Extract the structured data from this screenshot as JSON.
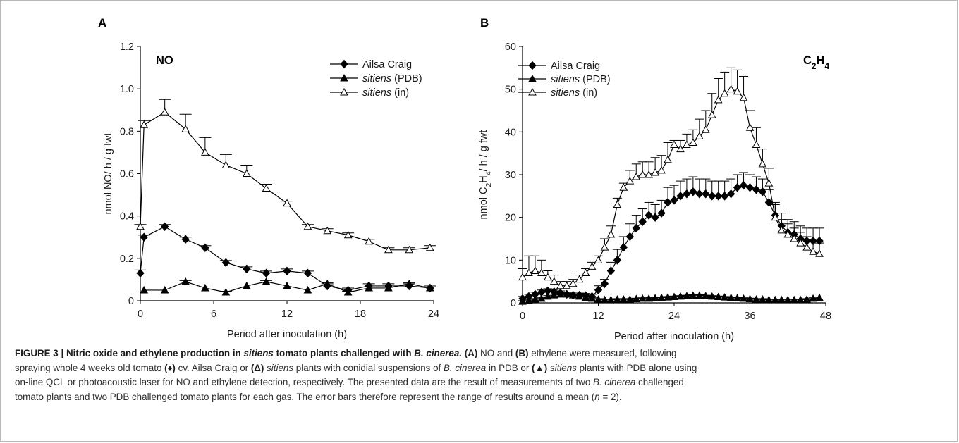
{
  "chart_data": [
    {
      "type": "line",
      "panel_label": "A",
      "annotation": "NO",
      "xlabel": "Period after inoculation (h)",
      "ylabel": "nmol NO/ h / g fwt",
      "xlim": [
        0,
        24
      ],
      "ylim": [
        0,
        1.2
      ],
      "xticks": [
        0,
        6,
        12,
        18,
        24
      ],
      "yticks": [
        0,
        0.2,
        0.4,
        0.6,
        0.8,
        1.0,
        1.2
      ],
      "ytick_labels": [
        "0",
        "0.2",
        "0.4",
        "0.6",
        "0.8",
        "1.0",
        "1.2"
      ],
      "legend_position": "top-right",
      "series": [
        {
          "name": "Ailsa Craig",
          "marker": "diamond",
          "x": [
            0,
            0.3,
            2,
            3.7,
            5.3,
            7,
            8.7,
            10.3,
            12,
            13.7,
            15.3,
            17,
            18.7,
            20.3,
            22,
            23.7
          ],
          "y": [
            0.13,
            0.3,
            0.35,
            0.29,
            0.25,
            0.18,
            0.15,
            0.13,
            0.14,
            0.13,
            0.07,
            0.05,
            0.07,
            0.07,
            0.07,
            0.06
          ],
          "err": [
            0.015,
            0.01,
            0.01,
            0.01,
            0.01,
            0.01,
            0.01,
            0.01,
            0.01,
            0.01,
            0.01,
            0.01,
            0.01,
            0.01,
            0.01,
            0.01
          ]
        },
        {
          "name": "sitiens (PDB)",
          "marker": "triangle-filled",
          "x": [
            0.3,
            2,
            3.7,
            5.3,
            7,
            8.7,
            10.3,
            12,
            13.7,
            15.3,
            17,
            18.7,
            20.3,
            22,
            23.7
          ],
          "y": [
            0.05,
            0.05,
            0.09,
            0.06,
            0.04,
            0.07,
            0.09,
            0.07,
            0.05,
            0.08,
            0.04,
            0.06,
            0.06,
            0.08,
            0.06
          ],
          "err": [
            0.005,
            0.005,
            0.005,
            0.005,
            0.005,
            0.005,
            0.005,
            0.005,
            0.005,
            0.005,
            0.005,
            0.005,
            0.005,
            0.005,
            0.005
          ]
        },
        {
          "name": "sitiens (in)",
          "marker": "triangle-open",
          "x": [
            0,
            0.3,
            2,
            3.7,
            5.3,
            7,
            8.7,
            10.3,
            12,
            13.7,
            15.3,
            17,
            18.7,
            20.3,
            22,
            23.7
          ],
          "y": [
            0.35,
            0.83,
            0.89,
            0.81,
            0.7,
            0.64,
            0.6,
            0.53,
            0.46,
            0.35,
            0.33,
            0.31,
            0.28,
            0.24,
            0.24,
            0.25
          ],
          "err": [
            0.01,
            0.02,
            0.06,
            0.07,
            0.07,
            0.05,
            0.04,
            0.02,
            0.01,
            0.01,
            0.01,
            0.01,
            0.01,
            0.01,
            0.01,
            0.01
          ]
        }
      ]
    },
    {
      "type": "line",
      "panel_label": "B",
      "annotation": "C2H4",
      "xlabel": "Period after inoculation (h)",
      "ylabel": "nmol C2H4/ h / g fwt",
      "xlim": [
        0,
        48
      ],
      "ylim": [
        0,
        60
      ],
      "xticks": [
        0,
        12,
        24,
        36,
        48
      ],
      "yticks": [
        0,
        10,
        20,
        30,
        40,
        50,
        60
      ],
      "ytick_labels": [
        "0",
        "10",
        "20",
        "30",
        "40",
        "50",
        "60"
      ],
      "legend_position": "top-left",
      "series": [
        {
          "name": "Ailsa Craig",
          "marker": "diamond",
          "x": [
            0,
            1,
            2,
            3,
            4,
            5,
            6,
            7,
            8,
            9,
            10,
            11,
            12,
            13,
            14,
            15,
            16,
            17,
            18,
            19,
            20,
            21,
            22,
            23,
            24,
            25,
            26,
            27,
            28,
            29,
            30,
            31,
            32,
            33,
            34,
            35,
            36,
            37,
            38,
            39,
            40,
            41,
            42,
            43,
            44,
            45,
            46,
            47
          ],
          "y": [
            1.0,
            1.5,
            2.0,
            2.5,
            2.8,
            2.6,
            2.3,
            2.0,
            1.8,
            1.8,
            1.7,
            1.5,
            3.0,
            4.5,
            7.5,
            10.0,
            13.0,
            15.5,
            17.5,
            19.0,
            20.5,
            20.0,
            21.0,
            23.5,
            24.0,
            25.0,
            25.5,
            26.0,
            25.5,
            25.5,
            25.0,
            25.0,
            25.0,
            25.5,
            27.0,
            27.5,
            27.0,
            26.5,
            26.0,
            23.5,
            20.5,
            18.0,
            16.5,
            16.0,
            15.0,
            14.5,
            14.5,
            14.5
          ],
          "err": [
            0.5,
            0.5,
            0.5,
            0.5,
            0.5,
            0.5,
            0.5,
            0.5,
            0.5,
            0.5,
            0.5,
            0.5,
            1.0,
            1.0,
            2.0,
            2.5,
            2.5,
            3.0,
            3.0,
            3.0,
            3.0,
            3.0,
            3.0,
            3.5,
            3.5,
            3.5,
            3.5,
            3.5,
            3.5,
            3.5,
            3.5,
            3.5,
            3.5,
            3.5,
            3.0,
            3.0,
            3.0,
            3.0,
            3.0,
            3.0,
            3.0,
            3.0,
            3.0,
            3.0,
            3.0,
            3.0,
            3.0,
            3.0
          ]
        },
        {
          "name": "sitiens (PDB)",
          "marker": "triangle-filled",
          "x": [
            0,
            1,
            2,
            3,
            4,
            5,
            6,
            7,
            8,
            9,
            10,
            11,
            12,
            13,
            14,
            15,
            16,
            17,
            18,
            19,
            20,
            21,
            22,
            23,
            24,
            25,
            26,
            27,
            28,
            29,
            30,
            31,
            32,
            33,
            34,
            35,
            36,
            37,
            38,
            39,
            40,
            41,
            42,
            43,
            44,
            45,
            46,
            47
          ],
          "y": [
            0.3,
            0.5,
            0.8,
            1.0,
            1.5,
            1.8,
            2.0,
            2.0,
            1.8,
            1.5,
            1.2,
            1.0,
            0.8,
            0.7,
            0.7,
            0.8,
            0.8,
            0.8,
            0.9,
            1.0,
            1.0,
            1.1,
            1.2,
            1.3,
            1.4,
            1.5,
            1.6,
            1.7,
            1.7,
            1.6,
            1.5,
            1.4,
            1.3,
            1.2,
            1.1,
            1.0,
            0.9,
            0.8,
            0.8,
            0.7,
            0.7,
            0.7,
            0.7,
            0.7,
            0.7,
            0.8,
            1.0,
            1.2
          ],
          "err": [
            0.2,
            0.2,
            0.2,
            0.2,
            0.2,
            0.2,
            0.2,
            0.2,
            0.2,
            0.2,
            0.2,
            0.2,
            0.2,
            0.2,
            0.2,
            0.2,
            0.2,
            0.2,
            0.2,
            0.2,
            0.2,
            0.2,
            0.2,
            0.2,
            0.2,
            0.2,
            0.2,
            0.2,
            0.2,
            0.2,
            0.2,
            0.2,
            0.2,
            0.2,
            0.2,
            0.2,
            0.2,
            0.2,
            0.2,
            0.2,
            0.2,
            0.2,
            0.2,
            0.2,
            0.2,
            0.2,
            0.2,
            0.2
          ]
        },
        {
          "name": "sitiens (in)",
          "marker": "triangle-open",
          "x": [
            0,
            1,
            2,
            3,
            4,
            5,
            6,
            7,
            8,
            9,
            10,
            11,
            12,
            13,
            14,
            15,
            16,
            17,
            18,
            19,
            20,
            21,
            22,
            23,
            24,
            25,
            26,
            27,
            28,
            29,
            30,
            31,
            32,
            33,
            34,
            35,
            36,
            37,
            38,
            39,
            40,
            41,
            42,
            43,
            44,
            45,
            46,
            47
          ],
          "y": [
            6.0,
            7.0,
            7.5,
            7.0,
            6.0,
            5.0,
            4.0,
            4.0,
            4.5,
            5.5,
            7.0,
            8.5,
            10.0,
            13.0,
            16.0,
            23.0,
            27.0,
            28.5,
            29.5,
            30.0,
            30.0,
            30.5,
            31.0,
            33.5,
            37.0,
            36.0,
            37.0,
            37.5,
            39.0,
            40.5,
            44.0,
            47.5,
            49.0,
            50.0,
            49.5,
            48.0,
            41.0,
            37.0,
            32.5,
            28.0,
            20.0,
            17.0,
            16.0,
            15.0,
            14.0,
            13.0,
            12.0,
            11.5
          ],
          "err": [
            2.0,
            4.0,
            3.5,
            3.0,
            1.5,
            1.5,
            1.0,
            1.0,
            1.0,
            1.0,
            1.0,
            1.0,
            1.0,
            2.0,
            2.0,
            1.5,
            1.0,
            2.5,
            3.0,
            3.0,
            3.0,
            3.5,
            3.5,
            4.0,
            1.0,
            2.0,
            2.5,
            3.0,
            4.0,
            4.5,
            5.0,
            5.0,
            5.0,
            5.0,
            5.0,
            5.0,
            4.0,
            4.0,
            3.5,
            3.5,
            3.0,
            2.5,
            2.5,
            2.5,
            2.5,
            2.5,
            2.5,
            2.5
          ]
        }
      ]
    }
  ],
  "caption": {
    "figure_label": "FIGURE 3 |",
    "title_before": "Nitric oxide and ethylene production in ",
    "title_italic": "sitiens",
    "title_middle": " tomato plants challenged with ",
    "title_species": "B. cinerea.",
    "line1": {
      "label_a": "(A)",
      "t1": " NO and ",
      "label_b": "(B)",
      "t2": " ethylene were measured, following"
    },
    "line2": {
      "t1": "spraying whole 4 weeks old tomato ",
      "sym1": "(♦)",
      "t2": " cv. Ailsa Craig or ",
      "sym2": "(Δ)",
      "t3_italic": "sitiens",
      "t4": " plants with conidial suspensions of ",
      "t5_italic": "B. cinerea",
      "t6": " in PDB or ",
      "sym3": "(▲)",
      "t7_italic": "sitiens",
      "t8": " plants with PDB alone using"
    },
    "line3": {
      "t1": "on-line QCL or photoacoustic laser for NO and ethylene detection, respectively. The presented data are the result of measurements of two ",
      "t2_italic": "B. cinerea",
      "t3": " challenged"
    },
    "line4": {
      "t1": "tomato plants and two PDB challenged tomato plants for each gas. The error bars therefore represent the range of results around a mean (",
      "t2_italic": "n",
      "t3": " = 2)."
    }
  }
}
